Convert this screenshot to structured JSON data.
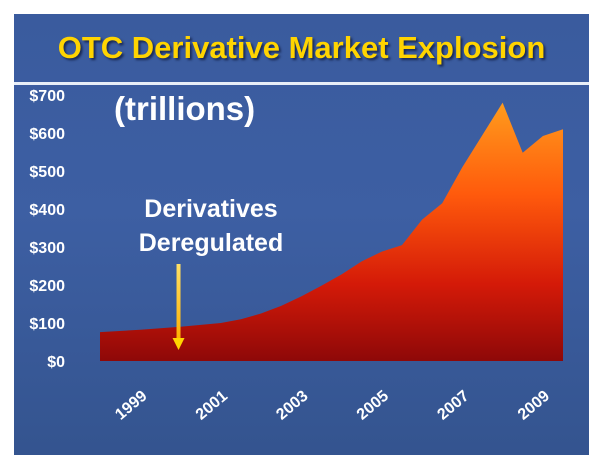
{
  "slide": {
    "title": "OTC Derivative Market Explosion",
    "title_color": "#ffd400",
    "background_color": "#3d5fa3"
  },
  "chart_data": {
    "type": "area",
    "title": "OTC Derivative Market Explosion",
    "subtitle": "(trillions)",
    "x": [
      1998.0,
      1999.0,
      2000.0,
      2001.0,
      2001.5,
      2002.0,
      2002.5,
      2003.0,
      2003.5,
      2004.0,
      2004.5,
      2005.0,
      2005.5,
      2006.0,
      2006.5,
      2007.0,
      2007.5,
      2008.0,
      2008.5,
      2009.0,
      2009.5
    ],
    "values": [
      76,
      82,
      90,
      100,
      110,
      125,
      145,
      170,
      198,
      228,
      262,
      288,
      305,
      372,
      415,
      510,
      595,
      680,
      548,
      592,
      610
    ],
    "xlabel": "",
    "ylabel": "",
    "ylim": [
      0,
      700
    ],
    "xlim": [
      1998,
      2009.5
    ],
    "y_ticks": [
      "$0",
      "$100",
      "$200",
      "$300",
      "$400",
      "$500",
      "$600",
      "$700"
    ],
    "x_ticks": [
      "1999",
      "2001",
      "2003",
      "2005",
      "2007",
      "2009"
    ],
    "grid": false,
    "annotations": [
      {
        "lines": [
          "Derivatives",
          "Deregulated"
        ],
        "arrow_at_x": 2000,
        "arrow_color": "#ffd400"
      }
    ],
    "fill_gradient": [
      "#ff9a1c",
      "#ff5a0c",
      "#d41a08",
      "#8e0808"
    ]
  }
}
